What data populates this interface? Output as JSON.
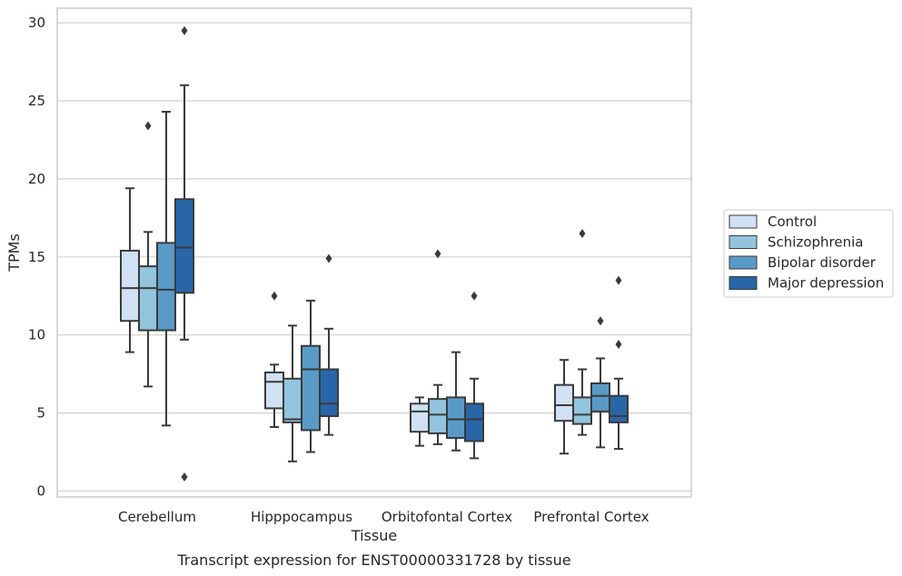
{
  "chart_data": {
    "type": "boxplot",
    "title": "Transcript expression for ENST00000331728 by tissue",
    "xlabel": "Tissue",
    "ylabel": "TPMs",
    "ylim": [
      -0.4,
      31
    ],
    "yticks": [
      0,
      5,
      10,
      15,
      20,
      25,
      30
    ],
    "grid": true,
    "legend_position": "right",
    "categories": [
      "Cerebellum",
      "Hipppocampus",
      "Orbitofontal Cortex",
      "Prefrontal Cortex"
    ],
    "series": [
      {
        "name": "Control",
        "color": "#cfe1f2",
        "boxes": [
          {
            "whisker_low": 8.9,
            "q1": 10.9,
            "median": 13.0,
            "q3": 15.4,
            "whisker_high": 19.4,
            "outliers": []
          },
          {
            "whisker_low": 4.1,
            "q1": 5.3,
            "median": 7.0,
            "q3": 7.6,
            "whisker_high": 8.1,
            "outliers": [
              12.5
            ]
          },
          {
            "whisker_low": 2.9,
            "q1": 3.8,
            "median": 5.1,
            "q3": 5.6,
            "whisker_high": 6.0,
            "outliers": []
          },
          {
            "whisker_low": 2.4,
            "q1": 4.5,
            "median": 5.5,
            "q3": 6.8,
            "whisker_high": 8.4,
            "outliers": []
          }
        ]
      },
      {
        "name": "Schizophrenia",
        "color": "#93c4de",
        "boxes": [
          {
            "whisker_low": 6.7,
            "q1": 10.3,
            "median": 13.0,
            "q3": 14.4,
            "whisker_high": 16.6,
            "outliers": [
              23.4
            ]
          },
          {
            "whisker_low": 1.9,
            "q1": 4.4,
            "median": 4.6,
            "q3": 7.2,
            "whisker_high": 10.6,
            "outliers": []
          },
          {
            "whisker_low": 3.0,
            "q1": 3.7,
            "median": 4.9,
            "q3": 5.9,
            "whisker_high": 6.8,
            "outliers": [
              15.2
            ]
          },
          {
            "whisker_low": 3.6,
            "q1": 4.3,
            "median": 4.9,
            "q3": 6.0,
            "whisker_high": 7.8,
            "outliers": [
              16.5
            ]
          }
        ]
      },
      {
        "name": "Bipolar disorder",
        "color": "#5a9ac6",
        "boxes": [
          {
            "whisker_low": 4.2,
            "q1": 10.3,
            "median": 12.9,
            "q3": 15.9,
            "whisker_high": 24.3,
            "outliers": []
          },
          {
            "whisker_low": 2.5,
            "q1": 3.9,
            "median": 7.8,
            "q3": 9.3,
            "whisker_high": 12.2,
            "outliers": []
          },
          {
            "whisker_low": 2.6,
            "q1": 3.4,
            "median": 4.6,
            "q3": 6.0,
            "whisker_high": 8.9,
            "outliers": []
          },
          {
            "whisker_low": 2.8,
            "q1": 5.1,
            "median": 6.1,
            "q3": 6.9,
            "whisker_high": 8.5,
            "outliers": [
              10.9
            ]
          }
        ]
      },
      {
        "name": "Major depression",
        "color": "#2866a8",
        "boxes": [
          {
            "whisker_low": 9.7,
            "q1": 12.7,
            "median": 15.6,
            "q3": 18.7,
            "whisker_high": 26.0,
            "outliers": [
              29.5,
              0.9
            ]
          },
          {
            "whisker_low": 3.6,
            "q1": 4.8,
            "median": 5.6,
            "q3": 7.8,
            "whisker_high": 10.4,
            "outliers": [
              14.9
            ]
          },
          {
            "whisker_low": 2.1,
            "q1": 3.2,
            "median": 4.6,
            "q3": 5.6,
            "whisker_high": 7.2,
            "outliers": [
              12.5
            ]
          },
          {
            "whisker_low": 2.7,
            "q1": 4.4,
            "median": 4.8,
            "q3": 6.1,
            "whisker_high": 7.2,
            "outliers": [
              13.5,
              9.4
            ]
          }
        ]
      }
    ]
  }
}
